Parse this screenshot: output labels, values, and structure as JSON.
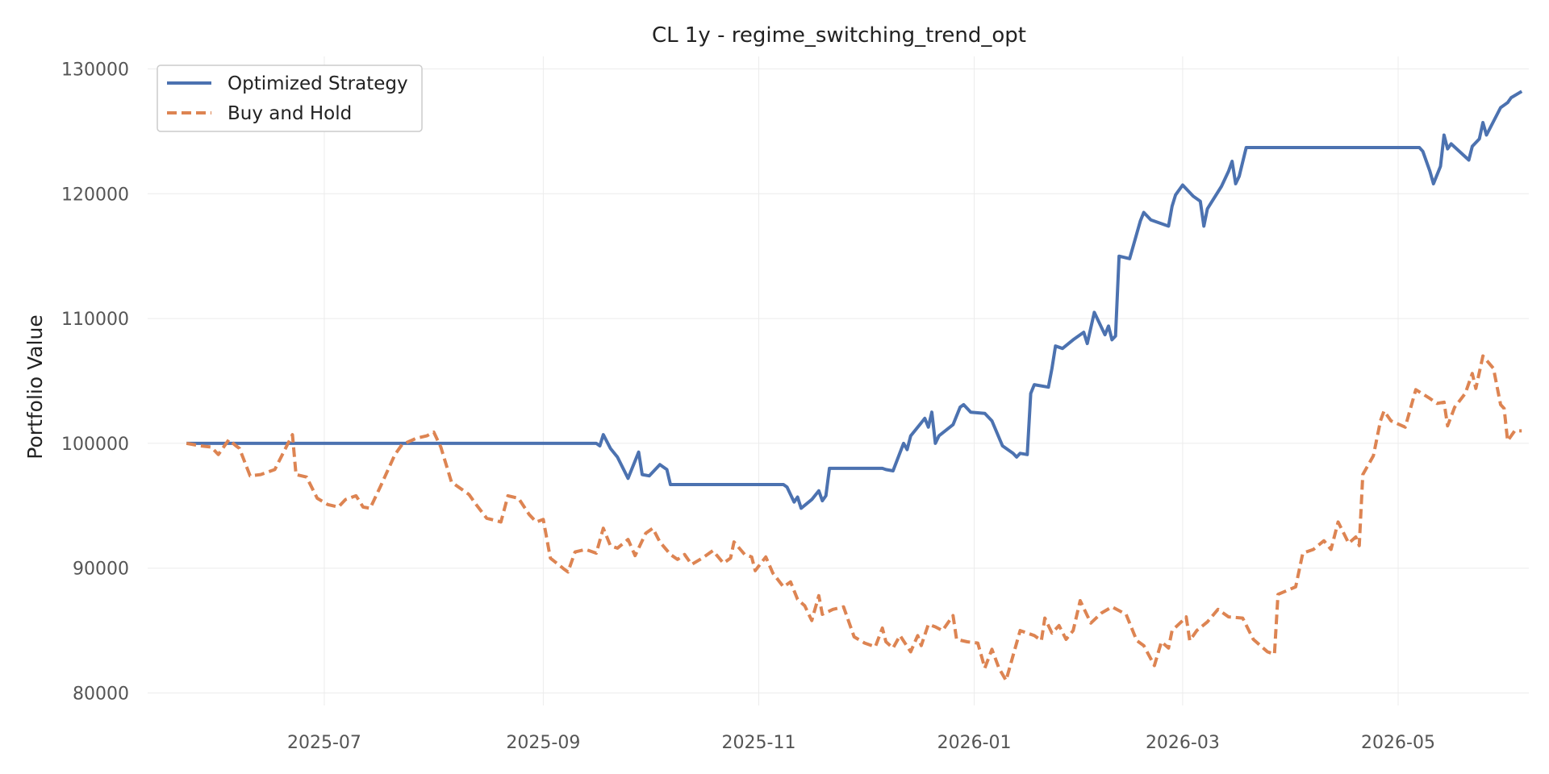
{
  "chart_data": {
    "type": "line",
    "title": "CL 1y - regime_switching_trend_opt",
    "xlabel": "",
    "ylabel": "Portfolio Value",
    "x_type": "date",
    "xlim": [
      "2025-05-12",
      "2026-06-07"
    ],
    "ylim": [
      79000,
      131000
    ],
    "x_ticks": [
      "2025-07-01",
      "2025-09-01",
      "2025-11-01",
      "2026-01-01",
      "2026-03-01",
      "2026-05-01"
    ],
    "x_tick_labels": [
      "2025-07",
      "2025-09",
      "2025-11",
      "2026-01",
      "2026-03",
      "2026-05"
    ],
    "y_ticks": [
      80000,
      90000,
      100000,
      110000,
      120000,
      130000
    ],
    "y_tick_labels": [
      "80000",
      "90000",
      "100000",
      "110000",
      "120000",
      "130000"
    ],
    "grid": true,
    "legend_position": "top-left",
    "series": [
      {
        "name": "Optimized Strategy",
        "color": "#4c72b0",
        "style": "solid",
        "points": [
          [
            "2025-05-23",
            100000
          ],
          [
            "2025-09-16",
            100000
          ],
          [
            "2025-09-17",
            99800
          ],
          [
            "2025-09-18",
            100700
          ],
          [
            "2025-09-20",
            99600
          ],
          [
            "2025-09-22",
            98900
          ],
          [
            "2025-09-25",
            97200
          ],
          [
            "2025-09-28",
            99300
          ],
          [
            "2025-09-29",
            97500
          ],
          [
            "2025-10-01",
            97400
          ],
          [
            "2025-10-04",
            98300
          ],
          [
            "2025-10-06",
            97900
          ],
          [
            "2025-10-07",
            96700
          ],
          [
            "2025-11-08",
            96700
          ],
          [
            "2025-11-09",
            96500
          ],
          [
            "2025-11-11",
            95300
          ],
          [
            "2025-11-12",
            95700
          ],
          [
            "2025-11-13",
            94800
          ],
          [
            "2025-11-16",
            95500
          ],
          [
            "2025-11-18",
            96200
          ],
          [
            "2025-11-19",
            95400
          ],
          [
            "2025-11-20",
            95800
          ],
          [
            "2025-11-21",
            98000
          ],
          [
            "2025-12-06",
            98000
          ],
          [
            "2025-12-07",
            97900
          ],
          [
            "2025-12-09",
            97800
          ],
          [
            "2025-12-12",
            100000
          ],
          [
            "2025-12-13",
            99500
          ],
          [
            "2025-12-14",
            100600
          ],
          [
            "2025-12-18",
            102000
          ],
          [
            "2025-12-19",
            101300
          ],
          [
            "2025-12-20",
            102500
          ],
          [
            "2025-12-21",
            100000
          ],
          [
            "2025-12-22",
            100600
          ],
          [
            "2025-12-26",
            101500
          ],
          [
            "2025-12-28",
            102900
          ],
          [
            "2025-12-29",
            103100
          ],
          [
            "2025-12-31",
            102500
          ],
          [
            "2026-01-04",
            102400
          ],
          [
            "2026-01-06",
            101800
          ],
          [
            "2026-01-09",
            99800
          ],
          [
            "2026-01-12",
            99200
          ],
          [
            "2026-01-13",
            98900
          ],
          [
            "2026-01-14",
            99200
          ],
          [
            "2026-01-16",
            99100
          ],
          [
            "2026-01-17",
            104000
          ],
          [
            "2026-01-18",
            104700
          ],
          [
            "2026-01-22",
            104500
          ],
          [
            "2026-01-23",
            106000
          ],
          [
            "2026-01-24",
            107800
          ],
          [
            "2026-01-26",
            107600
          ],
          [
            "2026-01-29",
            108300
          ],
          [
            "2026-02-01",
            108900
          ],
          [
            "2026-02-02",
            108000
          ],
          [
            "2026-02-04",
            110500
          ],
          [
            "2026-02-07",
            108700
          ],
          [
            "2026-02-08",
            109400
          ],
          [
            "2026-02-09",
            108300
          ],
          [
            "2026-02-10",
            108600
          ],
          [
            "2026-02-11",
            115000
          ],
          [
            "2026-02-14",
            114800
          ],
          [
            "2026-02-17",
            117800
          ],
          [
            "2026-02-18",
            118500
          ],
          [
            "2026-02-20",
            117900
          ],
          [
            "2026-02-22",
            117700
          ],
          [
            "2026-02-25",
            117400
          ],
          [
            "2026-02-26",
            119000
          ],
          [
            "2026-02-27",
            119900
          ],
          [
            "2026-02-29",
            120700
          ],
          [
            "2026-03-04",
            119800
          ],
          [
            "2026-03-06",
            119400
          ],
          [
            "2026-03-07",
            117400
          ],
          [
            "2026-03-08",
            118800
          ],
          [
            "2026-03-12",
            120600
          ],
          [
            "2026-03-14",
            121800
          ],
          [
            "2026-03-15",
            122600
          ],
          [
            "2026-03-16",
            120800
          ],
          [
            "2026-03-17",
            121400
          ],
          [
            "2026-03-19",
            123700
          ],
          [
            "2026-05-07",
            123700
          ],
          [
            "2026-05-08",
            123400
          ],
          [
            "2026-05-10",
            121800
          ],
          [
            "2026-05-11",
            120800
          ],
          [
            "2026-05-13",
            122200
          ],
          [
            "2026-05-14",
            124700
          ],
          [
            "2026-05-15",
            123600
          ],
          [
            "2026-05-16",
            124000
          ],
          [
            "2026-05-21",
            122700
          ],
          [
            "2026-05-22",
            123800
          ],
          [
            "2026-05-24",
            124400
          ],
          [
            "2026-05-25",
            125700
          ],
          [
            "2026-05-26",
            124700
          ],
          [
            "2026-05-30",
            126900
          ],
          [
            "2026-06-01",
            127300
          ],
          [
            "2026-06-02",
            127700
          ],
          [
            "2026-06-05",
            128200
          ]
        ]
      },
      {
        "name": "Buy and Hold",
        "color": "#dd8452",
        "style": "dashed",
        "points": [
          [
            "2025-05-23",
            100000
          ],
          [
            "2025-05-27",
            99800
          ],
          [
            "2025-05-30",
            99700
          ],
          [
            "2025-06-01",
            99100
          ],
          [
            "2025-06-04",
            100300
          ],
          [
            "2025-06-06",
            99800
          ],
          [
            "2025-06-07",
            99600
          ],
          [
            "2025-06-10",
            97400
          ],
          [
            "2025-06-13",
            97500
          ],
          [
            "2025-06-17",
            97900
          ],
          [
            "2025-06-22",
            100700
          ],
          [
            "2025-06-23",
            97500
          ],
          [
            "2025-06-26",
            97300
          ],
          [
            "2025-06-29",
            95600
          ],
          [
            "2025-07-02",
            95100
          ],
          [
            "2025-07-05",
            94900
          ],
          [
            "2025-07-07",
            95500
          ],
          [
            "2025-07-10",
            95800
          ],
          [
            "2025-07-12",
            94900
          ],
          [
            "2025-07-14",
            94800
          ],
          [
            "2025-07-17",
            96600
          ],
          [
            "2025-07-21",
            99100
          ],
          [
            "2025-07-23",
            99900
          ],
          [
            "2025-07-27",
            100400
          ],
          [
            "2025-07-30",
            100600
          ],
          [
            "2025-08-01",
            100900
          ],
          [
            "2025-08-03",
            99700
          ],
          [
            "2025-08-06",
            96900
          ],
          [
            "2025-08-11",
            95900
          ],
          [
            "2025-08-13",
            95100
          ],
          [
            "2025-08-16",
            94000
          ],
          [
            "2025-08-20",
            93700
          ],
          [
            "2025-08-22",
            95800
          ],
          [
            "2025-08-25",
            95600
          ],
          [
            "2025-08-28",
            94300
          ],
          [
            "2025-08-30",
            93700
          ],
          [
            "2025-09-01",
            93900
          ],
          [
            "2025-09-03",
            90800
          ],
          [
            "2025-09-07",
            89900
          ],
          [
            "2025-09-08",
            89700
          ],
          [
            "2025-09-10",
            91300
          ],
          [
            "2025-09-13",
            91500
          ],
          [
            "2025-09-16",
            91200
          ],
          [
            "2025-09-18",
            93200
          ],
          [
            "2025-09-20",
            91800
          ],
          [
            "2025-09-22",
            91600
          ],
          [
            "2025-09-25",
            92300
          ],
          [
            "2025-09-27",
            91000
          ],
          [
            "2025-09-30",
            92800
          ],
          [
            "2025-10-02",
            93200
          ],
          [
            "2025-10-04",
            92100
          ],
          [
            "2025-10-07",
            91100
          ],
          [
            "2025-10-09",
            90700
          ],
          [
            "2025-10-11",
            91100
          ],
          [
            "2025-10-13",
            90300
          ],
          [
            "2025-10-16",
            90800
          ],
          [
            "2025-10-19",
            91400
          ],
          [
            "2025-10-22",
            90400
          ],
          [
            "2025-10-24",
            90800
          ],
          [
            "2025-10-25",
            92100
          ],
          [
            "2025-10-28",
            91100
          ],
          [
            "2025-10-30",
            90900
          ],
          [
            "2025-10-31",
            89800
          ],
          [
            "2025-11-03",
            90900
          ],
          [
            "2025-11-05",
            89600
          ],
          [
            "2025-11-08",
            88500
          ],
          [
            "2025-11-10",
            88900
          ],
          [
            "2025-11-12",
            87500
          ],
          [
            "2025-11-14",
            87000
          ],
          [
            "2025-11-16",
            85800
          ],
          [
            "2025-11-18",
            87800
          ],
          [
            "2025-11-19",
            86300
          ],
          [
            "2025-11-22",
            86700
          ],
          [
            "2025-11-25",
            86900
          ],
          [
            "2025-11-28",
            84500
          ],
          [
            "2025-12-01",
            84000
          ],
          [
            "2025-12-04",
            83700
          ],
          [
            "2025-12-06",
            85200
          ],
          [
            "2025-12-07",
            84100
          ],
          [
            "2025-12-09",
            83600
          ],
          [
            "2025-12-11",
            84600
          ],
          [
            "2025-12-14",
            83300
          ],
          [
            "2025-12-16",
            84600
          ],
          [
            "2025-12-17",
            83800
          ],
          [
            "2025-12-19",
            85500
          ],
          [
            "2025-12-21",
            85300
          ],
          [
            "2025-12-23",
            85000
          ],
          [
            "2025-12-26",
            86200
          ],
          [
            "2025-12-27",
            84300
          ],
          [
            "2025-12-30",
            84100
          ],
          [
            "2026-01-02",
            84000
          ],
          [
            "2026-01-04",
            82000
          ],
          [
            "2026-01-06",
            83500
          ],
          [
            "2026-01-08",
            82000
          ],
          [
            "2026-01-10",
            81000
          ],
          [
            "2026-01-12",
            83000
          ],
          [
            "2026-01-14",
            85000
          ],
          [
            "2026-01-18",
            84600
          ],
          [
            "2026-01-20",
            84200
          ],
          [
            "2026-01-21",
            86000
          ],
          [
            "2026-01-23",
            84800
          ],
          [
            "2026-01-25",
            85400
          ],
          [
            "2026-01-27",
            84300
          ],
          [
            "2026-01-29",
            85000
          ],
          [
            "2026-01-31",
            87400
          ],
          [
            "2026-02-03",
            85600
          ],
          [
            "2026-02-06",
            86400
          ],
          [
            "2026-02-09",
            86900
          ],
          [
            "2026-02-13",
            86300
          ],
          [
            "2026-02-16",
            84200
          ],
          [
            "2026-02-18",
            83800
          ],
          [
            "2026-02-21",
            82200
          ],
          [
            "2026-02-23",
            84100
          ],
          [
            "2026-02-25",
            83600
          ],
          [
            "2026-02-26",
            85000
          ],
          [
            "2026-02-29",
            85800
          ],
          [
            "2026-03-02",
            86100
          ],
          [
            "2026-03-03",
            84200
          ],
          [
            "2026-03-05",
            85000
          ],
          [
            "2026-03-08",
            85700
          ],
          [
            "2026-03-11",
            86700
          ],
          [
            "2026-03-14",
            86100
          ],
          [
            "2026-03-18",
            86000
          ],
          [
            "2026-03-21",
            84300
          ],
          [
            "2026-03-25",
            83300
          ],
          [
            "2026-03-27",
            83100
          ],
          [
            "2026-03-28",
            87900
          ],
          [
            "2026-04-02",
            88500
          ],
          [
            "2026-04-04",
            91200
          ],
          [
            "2026-04-07",
            91500
          ],
          [
            "2026-04-10",
            92200
          ],
          [
            "2026-04-12",
            91500
          ],
          [
            "2026-04-14",
            93700
          ],
          [
            "2026-04-17",
            92000
          ],
          [
            "2026-04-19",
            92500
          ],
          [
            "2026-04-20",
            91800
          ],
          [
            "2026-04-21",
            97500
          ],
          [
            "2026-04-24",
            99000
          ],
          [
            "2026-04-26",
            101800
          ],
          [
            "2026-04-27",
            102600
          ],
          [
            "2026-04-29",
            101800
          ],
          [
            "2026-05-03",
            101300
          ],
          [
            "2026-05-06",
            104300
          ],
          [
            "2026-05-10",
            103600
          ],
          [
            "2026-05-12",
            103200
          ],
          [
            "2026-05-14",
            103300
          ],
          [
            "2026-05-15",
            101400
          ],
          [
            "2026-05-17",
            102900
          ],
          [
            "2026-05-20",
            104000
          ],
          [
            "2026-05-22",
            105600
          ],
          [
            "2026-05-23",
            104400
          ],
          [
            "2026-05-25",
            107000
          ],
          [
            "2026-05-28",
            106000
          ],
          [
            "2026-05-30",
            103100
          ],
          [
            "2026-05-31",
            102800
          ],
          [
            "2026-06-01",
            100200
          ],
          [
            "2026-06-03",
            101000
          ],
          [
            "2026-06-05",
            101000
          ]
        ]
      }
    ]
  }
}
